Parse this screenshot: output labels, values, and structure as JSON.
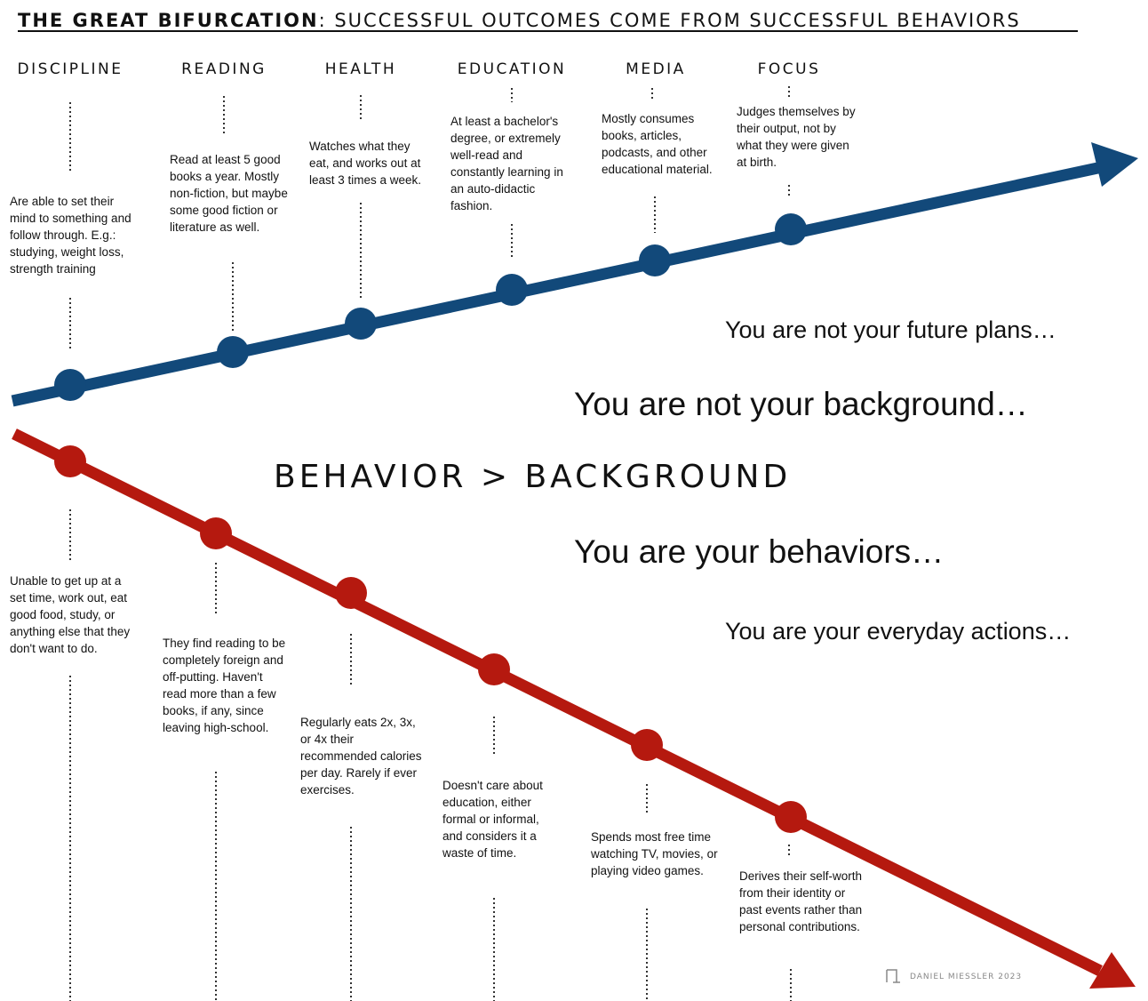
{
  "title": {
    "bold": "THE GREAT BIFURCATION",
    "rest": ": SUCCESSFUL OUTCOMES COME FROM SUCCESSFUL BEHAVIORS"
  },
  "colors": {
    "upper_line": "#12497a",
    "lower_line": "#b5190f",
    "text": "#111111"
  },
  "categories": [
    {
      "name": "DISCIPLINE",
      "positive": "Are able to set their mind to something and follow through. E.g.: studying, weight loss, strength training",
      "negative": "Unable to get up at a set time, work out, eat good food, study, or anything else that they don't want to do."
    },
    {
      "name": "READING",
      "positive": "Read at least 5 good books a year. Mostly non-fiction, but maybe some good fiction or literature as well.",
      "negative": "They find reading to be completely foreign and off-putting. Haven't read more than a few books, if any, since leaving high-school."
    },
    {
      "name": "HEALTH",
      "positive": "Watches what they eat, and works out at least 3 times a week.",
      "negative": "Regularly eats 2x, 3x, or 4x their recommended calories per day. Rarely if ever exercises."
    },
    {
      "name": "EDUCATION",
      "positive": "At least a bachelor's degree, or extremely well-read and constantly learning in an auto-didactic fashion.",
      "negative": "Doesn't care about education, either formal or informal, and considers it a waste of time."
    },
    {
      "name": "MEDIA",
      "positive": "Mostly consumes books, articles, podcasts, and other educational material.",
      "negative": "Spends most free time watching TV, movies, or playing video games."
    },
    {
      "name": "FOCUS",
      "positive": "Judges themselves by their output, not by what they were given at birth.",
      "negative": "Derives their self-worth from their identity or past events rather than personal contributions."
    }
  ],
  "phrases": {
    "future_plans": "You are not your future plans…",
    "background": "You are not your background…",
    "behaviors": "You are your behaviors…",
    "everyday_actions": "You are your everyday actions…"
  },
  "center_label": "BEHAVIOR > BACKGROUND",
  "credit": "DANIEL MIESSLER 2023"
}
